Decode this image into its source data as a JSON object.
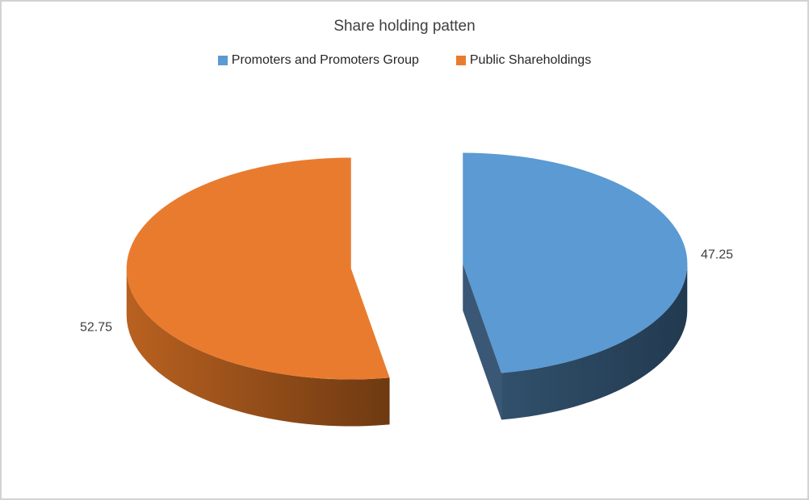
{
  "page": {
    "background": "#ffffff",
    "border_color": "#d2d2d2"
  },
  "chart_data": {
    "type": "pie",
    "style": "3d-exploded",
    "title": "Share holding patten",
    "categories": [
      "Promoters and Promoters Group",
      "Public Shareholdings"
    ],
    "values": [
      47.25,
      52.75
    ],
    "data_labels": [
      "47.25",
      "52.75"
    ],
    "colors": [
      "#5b9ad3",
      "#e97b2f"
    ],
    "side_colors": [
      [
        "#31506b",
        "#223a50"
      ],
      [
        "#b96120",
        "#6e3a12"
      ]
    ],
    "flat_side_color": "#3a5875",
    "text_color": "#3f3f3f",
    "legend_text_color": "#262626",
    "legend_position": "top",
    "start_angle_deg": 90,
    "direction": "clockwise"
  }
}
